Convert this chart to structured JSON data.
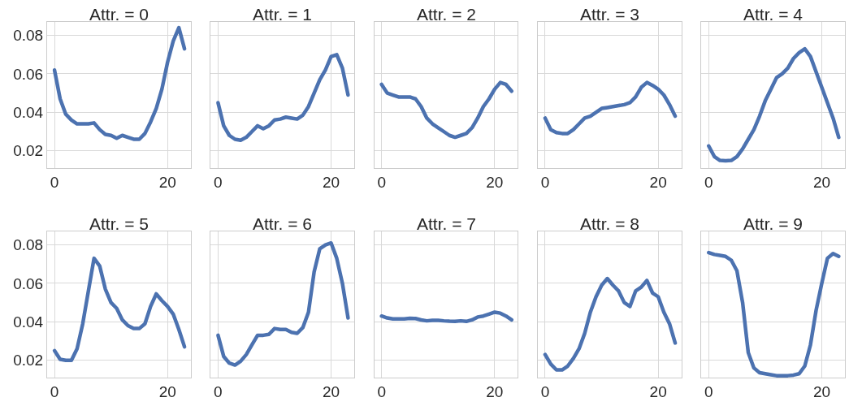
{
  "chart_data": [
    {
      "type": "line",
      "title": "Attr. = 0",
      "x": [
        0,
        1,
        2,
        3,
        4,
        5,
        6,
        7,
        8,
        9,
        10,
        11,
        12,
        13,
        14,
        15,
        16,
        17,
        18,
        19,
        20,
        21,
        22,
        23
      ],
      "series": [
        {
          "color": "#4c72b0",
          "values": [
            0.062,
            0.047,
            0.039,
            0.036,
            0.034,
            0.034,
            0.034,
            0.0345,
            0.031,
            0.0285,
            0.028,
            0.0265,
            0.028,
            0.027,
            0.026,
            0.026,
            0.029,
            0.035,
            0.042,
            0.052,
            0.066,
            0.077,
            0.084,
            0.073
          ]
        }
      ],
      "xlim": [
        -1.3,
        24.1
      ],
      "xticks": [
        0,
        20
      ],
      "ylim": [
        0.011,
        0.087
      ],
      "yticks": [
        0.02,
        0.04,
        0.06,
        0.08
      ],
      "grid": true,
      "marker": "none",
      "line_style": "solid"
    },
    {
      "type": "line",
      "title": "Attr. = 1",
      "x": [
        0,
        1,
        2,
        3,
        4,
        5,
        6,
        7,
        8,
        9,
        10,
        11,
        12,
        13,
        14,
        15,
        16,
        17,
        18,
        19,
        20,
        21,
        22,
        23
      ],
      "series": [
        {
          "color": "#4c72b0",
          "values": [
            0.045,
            0.033,
            0.028,
            0.026,
            0.0255,
            0.027,
            0.03,
            0.033,
            0.0315,
            0.033,
            0.036,
            0.0365,
            0.0375,
            0.037,
            0.0365,
            0.0385,
            0.043,
            0.05,
            0.057,
            0.062,
            0.069,
            0.07,
            0.063,
            0.049
          ]
        }
      ],
      "xlim": [
        -1.3,
        24.1
      ],
      "xticks": [
        0,
        20
      ],
      "ylim": [
        0.011,
        0.087
      ],
      "yticks": [
        0.02,
        0.04,
        0.06,
        0.08
      ],
      "tick_labels": "x",
      "grid": true,
      "marker": "none",
      "line_style": "solid"
    },
    {
      "type": "line",
      "title": "Attr. = 2",
      "x": [
        0,
        1,
        2,
        3,
        4,
        5,
        6,
        7,
        8,
        9,
        10,
        11,
        12,
        13,
        14,
        15,
        16,
        17,
        18,
        19,
        20,
        21,
        22,
        23
      ],
      "series": [
        {
          "color": "#4c72b0",
          "values": [
            0.0545,
            0.05,
            0.049,
            0.048,
            0.048,
            0.048,
            0.047,
            0.043,
            0.037,
            0.034,
            0.032,
            0.03,
            0.028,
            0.027,
            0.028,
            0.029,
            0.032,
            0.037,
            0.043,
            0.047,
            0.052,
            0.0555,
            0.0545,
            0.051
          ]
        }
      ],
      "xlim": [
        -1.3,
        24.1
      ],
      "xticks": [
        0,
        20
      ],
      "ylim": [
        0.011,
        0.087
      ],
      "yticks": [
        0.02,
        0.04,
        0.06,
        0.08
      ],
      "tick_labels": "x",
      "grid": true,
      "marker": "none",
      "line_style": "solid"
    },
    {
      "type": "line",
      "title": "Attr. = 3",
      "x": [
        0,
        1,
        2,
        3,
        4,
        5,
        6,
        7,
        8,
        9,
        10,
        11,
        12,
        13,
        14,
        15,
        16,
        17,
        18,
        19,
        20,
        21,
        22,
        23
      ],
      "series": [
        {
          "color": "#4c72b0",
          "values": [
            0.037,
            0.031,
            0.0295,
            0.029,
            0.029,
            0.031,
            0.034,
            0.037,
            0.038,
            0.04,
            0.042,
            0.0425,
            0.043,
            0.0435,
            0.044,
            0.045,
            0.048,
            0.053,
            0.0555,
            0.054,
            0.052,
            0.049,
            0.044,
            0.038
          ]
        }
      ],
      "xlim": [
        -1.3,
        24.1
      ],
      "xticks": [
        0,
        20
      ],
      "ylim": [
        0.011,
        0.087
      ],
      "yticks": [
        0.02,
        0.04,
        0.06,
        0.08
      ],
      "tick_labels": "x",
      "grid": true,
      "marker": "none",
      "line_style": "solid"
    },
    {
      "type": "line",
      "title": "Attr. = 4",
      "x": [
        0,
        1,
        2,
        3,
        4,
        5,
        6,
        7,
        8,
        9,
        10,
        11,
        12,
        13,
        14,
        15,
        16,
        17,
        18,
        19,
        20,
        21,
        22,
        23
      ],
      "series": [
        {
          "color": "#4c72b0",
          "values": [
            0.0225,
            0.017,
            0.015,
            0.0148,
            0.015,
            0.017,
            0.021,
            0.026,
            0.031,
            0.038,
            0.046,
            0.052,
            0.058,
            0.06,
            0.063,
            0.068,
            0.071,
            0.073,
            0.069,
            0.061,
            0.053,
            0.045,
            0.037,
            0.027
          ]
        }
      ],
      "xlim": [
        -1.3,
        24.1
      ],
      "xticks": [
        0,
        20
      ],
      "ylim": [
        0.011,
        0.087
      ],
      "yticks": [
        0.02,
        0.04,
        0.06,
        0.08
      ],
      "tick_labels": "x",
      "grid": true,
      "marker": "none",
      "line_style": "solid"
    },
    {
      "type": "line",
      "title": "Attr. = 5",
      "x": [
        0,
        1,
        2,
        3,
        4,
        5,
        6,
        7,
        8,
        9,
        10,
        11,
        12,
        13,
        14,
        15,
        16,
        17,
        18,
        19,
        20,
        21,
        22,
        23
      ],
      "series": [
        {
          "color": "#4c72b0",
          "values": [
            0.025,
            0.0205,
            0.02,
            0.02,
            0.026,
            0.039,
            0.056,
            0.073,
            0.069,
            0.057,
            0.05,
            0.047,
            0.041,
            0.038,
            0.0365,
            0.0365,
            0.039,
            0.048,
            0.0545,
            0.051,
            0.048,
            0.044,
            0.036,
            0.027
          ]
        }
      ],
      "xlim": [
        -1.3,
        24.1
      ],
      "xticks": [
        0,
        20
      ],
      "ylim": [
        0.011,
        0.087
      ],
      "yticks": [
        0.02,
        0.04,
        0.06,
        0.08
      ],
      "grid": true,
      "marker": "none",
      "line_style": "solid"
    },
    {
      "type": "line",
      "title": "Attr. = 6",
      "x": [
        0,
        1,
        2,
        3,
        4,
        5,
        6,
        7,
        8,
        9,
        10,
        11,
        12,
        13,
        14,
        15,
        16,
        17,
        18,
        19,
        20,
        21,
        22,
        23
      ],
      "series": [
        {
          "color": "#4c72b0",
          "values": [
            0.033,
            0.022,
            0.0185,
            0.0175,
            0.0195,
            0.023,
            0.028,
            0.033,
            0.033,
            0.0335,
            0.0365,
            0.036,
            0.036,
            0.0345,
            0.034,
            0.037,
            0.045,
            0.066,
            0.078,
            0.08,
            0.081,
            0.073,
            0.06,
            0.042
          ]
        }
      ],
      "xlim": [
        -1.3,
        24.1
      ],
      "xticks": [
        0,
        20
      ],
      "ylim": [
        0.011,
        0.087
      ],
      "yticks": [
        0.02,
        0.04,
        0.06,
        0.08
      ],
      "tick_labels": "x",
      "grid": true,
      "marker": "none",
      "line_style": "solid"
    },
    {
      "type": "line",
      "title": "Attr. = 7",
      "x": [
        0,
        1,
        2,
        3,
        4,
        5,
        6,
        7,
        8,
        9,
        10,
        11,
        12,
        13,
        14,
        15,
        16,
        17,
        18,
        19,
        20,
        21,
        22,
        23
      ],
      "series": [
        {
          "color": "#4c72b0",
          "values": [
            0.043,
            0.042,
            0.0415,
            0.0415,
            0.0415,
            0.0418,
            0.0417,
            0.041,
            0.0405,
            0.0408,
            0.0408,
            0.0405,
            0.0403,
            0.0402,
            0.0405,
            0.0402,
            0.041,
            0.0425,
            0.043,
            0.044,
            0.045,
            0.0445,
            0.043,
            0.041
          ]
        }
      ],
      "xlim": [
        -1.3,
        24.1
      ],
      "xticks": [
        0,
        20
      ],
      "ylim": [
        0.011,
        0.087
      ],
      "yticks": [
        0.02,
        0.04,
        0.06,
        0.08
      ],
      "tick_labels": "x",
      "grid": true,
      "marker": "none",
      "line_style": "solid"
    },
    {
      "type": "line",
      "title": "Attr. = 8",
      "x": [
        0,
        1,
        2,
        3,
        4,
        5,
        6,
        7,
        8,
        9,
        10,
        11,
        12,
        13,
        14,
        15,
        16,
        17,
        18,
        19,
        20,
        21,
        22,
        23
      ],
      "series": [
        {
          "color": "#4c72b0",
          "values": [
            0.023,
            0.018,
            0.015,
            0.015,
            0.017,
            0.021,
            0.026,
            0.034,
            0.045,
            0.053,
            0.059,
            0.0625,
            0.059,
            0.056,
            0.05,
            0.048,
            0.056,
            0.058,
            0.0615,
            0.055,
            0.053,
            0.045,
            0.039,
            0.029
          ]
        }
      ],
      "xlim": [
        -1.3,
        24.1
      ],
      "xticks": [
        0,
        20
      ],
      "ylim": [
        0.011,
        0.087
      ],
      "yticks": [
        0.02,
        0.04,
        0.06,
        0.08
      ],
      "tick_labels": "x",
      "grid": true,
      "marker": "none",
      "line_style": "solid"
    },
    {
      "type": "line",
      "title": "Attr. = 9",
      "x": [
        0,
        1,
        2,
        3,
        4,
        5,
        6,
        7,
        8,
        9,
        10,
        11,
        12,
        13,
        14,
        15,
        16,
        17,
        18,
        19,
        20,
        21,
        22,
        23
      ],
      "series": [
        {
          "color": "#4c72b0",
          "values": [
            0.076,
            0.075,
            0.0745,
            0.074,
            0.072,
            0.0665,
            0.05,
            0.024,
            0.016,
            0.0135,
            0.013,
            0.0125,
            0.012,
            0.012,
            0.012,
            0.0123,
            0.013,
            0.017,
            0.028,
            0.046,
            0.06,
            0.073,
            0.0755,
            0.074
          ]
        }
      ],
      "xlim": [
        -1.3,
        24.1
      ],
      "xticks": [
        0,
        20
      ],
      "ylim": [
        0.011,
        0.087
      ],
      "yticks": [
        0.02,
        0.04,
        0.06,
        0.08
      ],
      "tick_labels": "x",
      "grid": true,
      "marker": "none",
      "line_style": "solid"
    }
  ]
}
